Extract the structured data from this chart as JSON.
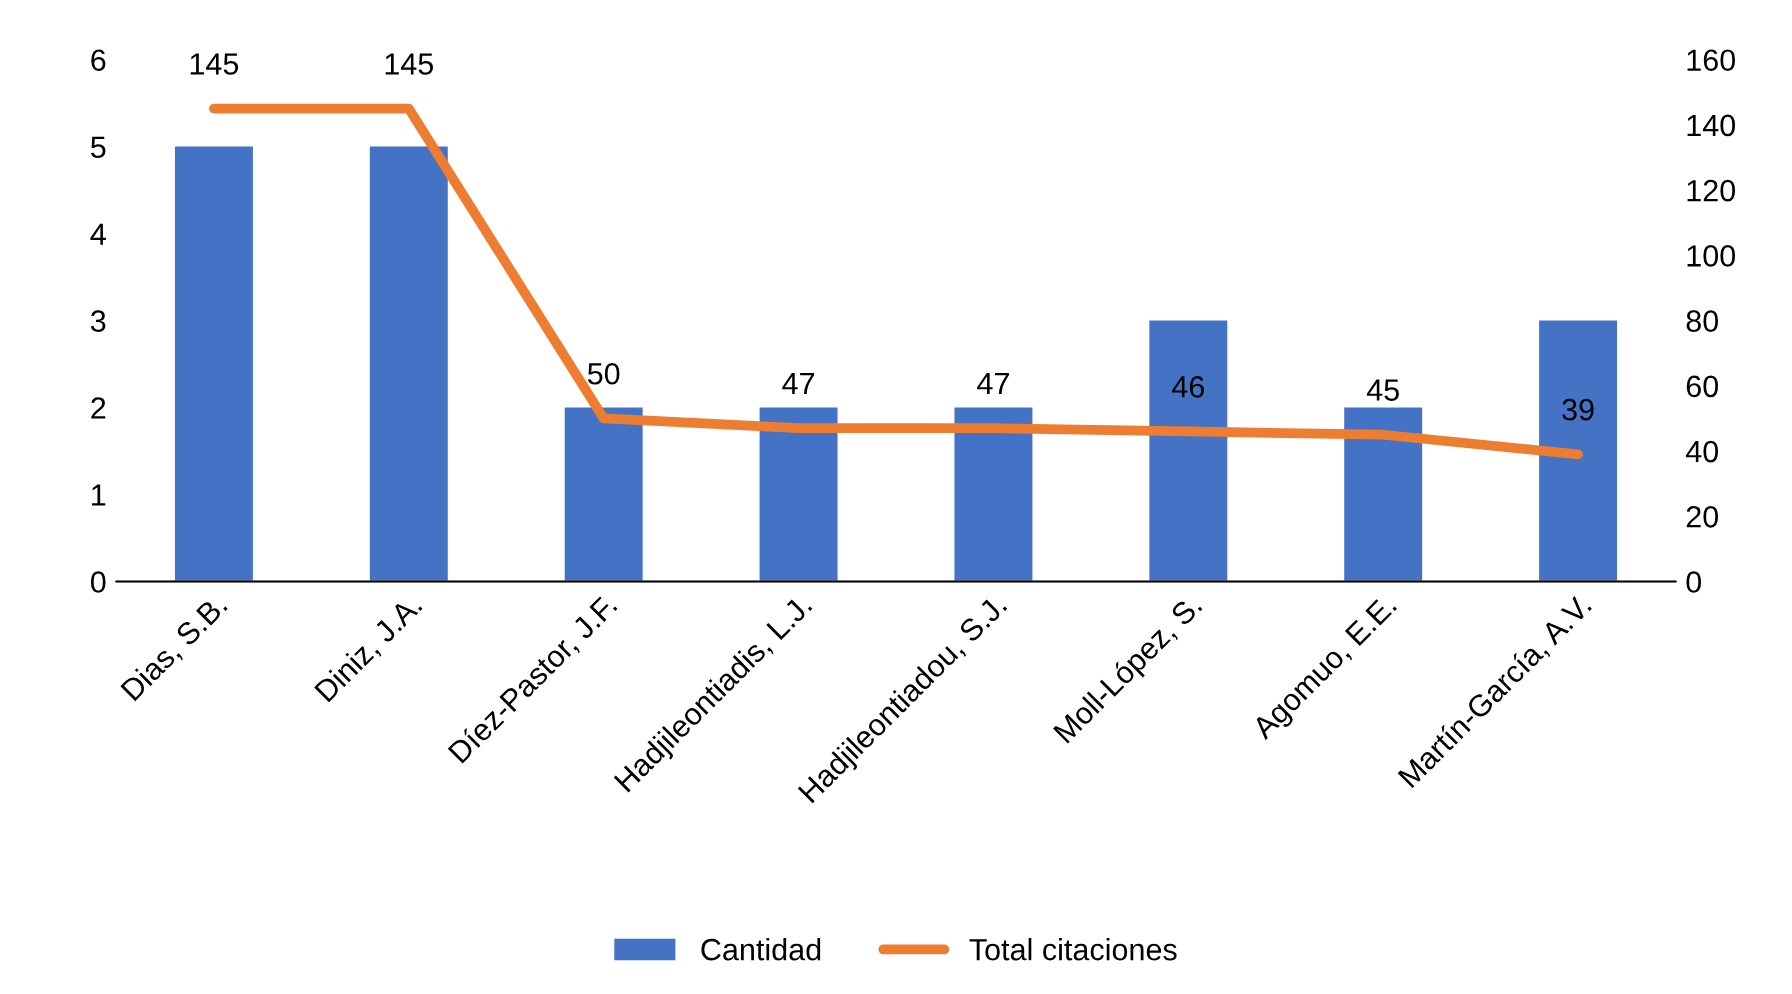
{
  "chart_data": {
    "type": "bar",
    "categories": [
      "Dias, S.B.",
      "Diniz, J.A.",
      "Díez-Pastor, J.F.",
      "Hadjileontiadis, L.J.",
      "Hadjileontiadou, S.J.",
      "Moll-López, S.",
      "Agomuo, E.E.",
      "Martín-García, A.V."
    ],
    "series": [
      {
        "name": "Cantidad",
        "color": "#4472c4",
        "values": [
          5,
          5,
          2,
          2,
          2,
          3,
          2,
          3
        ]
      },
      {
        "name": "Total citaciones",
        "type": "line",
        "axis": "y2",
        "color": "#ed7d31",
        "values": [
          145,
          145,
          50,
          47,
          47,
          46,
          45,
          39
        ],
        "value_labels": [
          "145",
          "145",
          "50",
          "47",
          "47",
          "46",
          "45",
          "39"
        ]
      }
    ],
    "ylim": [
      0,
      6
    ],
    "yticks": [
      0,
      1,
      2,
      3,
      4,
      5,
      6
    ],
    "y2lim": [
      0,
      160
    ],
    "y2ticks": [
      0,
      20,
      40,
      60,
      80,
      100,
      120,
      140,
      160
    ],
    "grid": false,
    "legend": "bottom",
    "marker": "none",
    "line_style": "solid"
  }
}
